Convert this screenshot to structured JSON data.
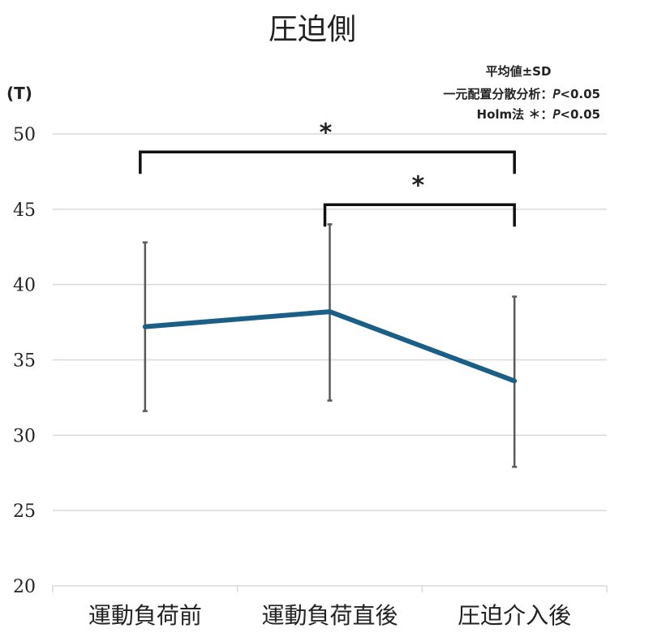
{
  "chart_data": {
    "type": "line",
    "title": "圧迫側",
    "ylabel": "(T)",
    "categories": [
      "運動負荷前",
      "運動負荷直後",
      "圧迫介入後"
    ],
    "series": [
      {
        "values": [
          37.2,
          38.2,
          33.6
        ],
        "error_low": [
          31.6,
          32.3,
          27.9
        ],
        "error_high": [
          42.8,
          44.0,
          39.2
        ],
        "color": "#1c5f86"
      }
    ],
    "ylim": [
      20,
      50
    ],
    "yticks": [
      "20",
      "25",
      "30",
      "35",
      "40",
      "45",
      "50"
    ],
    "grid": true,
    "annotations": {
      "line1": "平均値±SD",
      "line2": "一元配置分散分析：𝘗<0.05",
      "line3": "Holm法 ＊：𝘗<0.05"
    },
    "significance": [
      {
        "from": 0,
        "to": 2,
        "label": "*"
      },
      {
        "from": 1,
        "to": 2,
        "label": "*"
      }
    ]
  }
}
